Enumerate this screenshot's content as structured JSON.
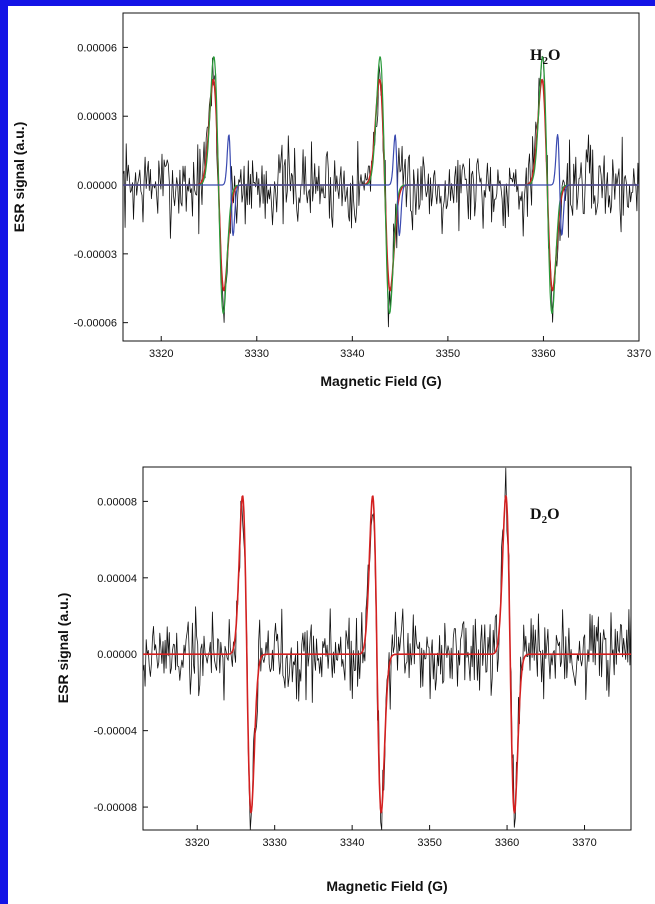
{
  "chart_data": [
    {
      "type": "line",
      "annotation": "H2O",
      "xlabel": "Magnetic Field (G)",
      "ylabel": "ESR signal (a.u.)",
      "xlim": [
        3316,
        3370
      ],
      "ylim": [
        -6.8e-05,
        7.5e-05
      ],
      "xticks": [
        3320,
        3330,
        3340,
        3350,
        3360,
        3370
      ],
      "xtick_labels": [
        "3320",
        "3330",
        "3340",
        "3350",
        "3360",
        "3370"
      ],
      "yticks": [
        6e-05,
        3e-05,
        0,
        -3e-05,
        -6e-05
      ],
      "ytick_labels": [
        "0.00006",
        "0.00003",
        "0.00000",
        "-0.00003",
        "-0.00006"
      ],
      "lines": [
        {
          "center": 3326.0,
          "width": 0.55
        },
        {
          "center": 3343.4,
          "width": 0.55
        },
        {
          "center": 3360.4,
          "width": 0.55
        }
      ],
      "series": [
        {
          "role": "experimental",
          "color": "#111111",
          "noise": 1.3e-05,
          "signal_amplitude": 4.8e-05
        },
        {
          "role": "fit",
          "color": "#cc2222",
          "amplitude": 4.6e-05,
          "width_scale": 1.0
        },
        {
          "role": "component",
          "color": "#2a9a3a",
          "amplitude": 5.6e-05,
          "width_scale": 0.9
        },
        {
          "role": "component",
          "color": "#3a4ab0",
          "amplitude": 2.2e-05,
          "width_scale": 0.4,
          "shift": 1.3
        }
      ]
    },
    {
      "type": "line",
      "annotation": "D2O",
      "xlabel": "Magnetic Field (G)",
      "ylabel": "ESR signal (a.u.)",
      "xlim": [
        3313,
        3376
      ],
      "ylim": [
        -9.2e-05,
        9.8e-05
      ],
      "xticks": [
        3320,
        3330,
        3340,
        3350,
        3360,
        3370
      ],
      "xtick_labels": [
        "3320",
        "3330",
        "3340",
        "3350",
        "3360",
        "3370"
      ],
      "yticks": [
        8e-05,
        4e-05,
        0,
        -4e-05,
        -8e-05
      ],
      "ytick_labels": [
        "0.00008",
        "0.00004",
        "0.00000",
        "-0.00004",
        "-0.00008"
      ],
      "lines": [
        {
          "center": 3326.4,
          "width": 0.55
        },
        {
          "center": 3343.2,
          "width": 0.55
        },
        {
          "center": 3360.4,
          "width": 0.55
        }
      ],
      "series": [
        {
          "role": "experimental",
          "color": "#111111",
          "noise": 1.6e-05,
          "signal_amplitude": 8e-05
        },
        {
          "role": "fit",
          "color": "#d42020",
          "amplitude": 8.3e-05,
          "width_scale": 1.0
        }
      ]
    }
  ]
}
